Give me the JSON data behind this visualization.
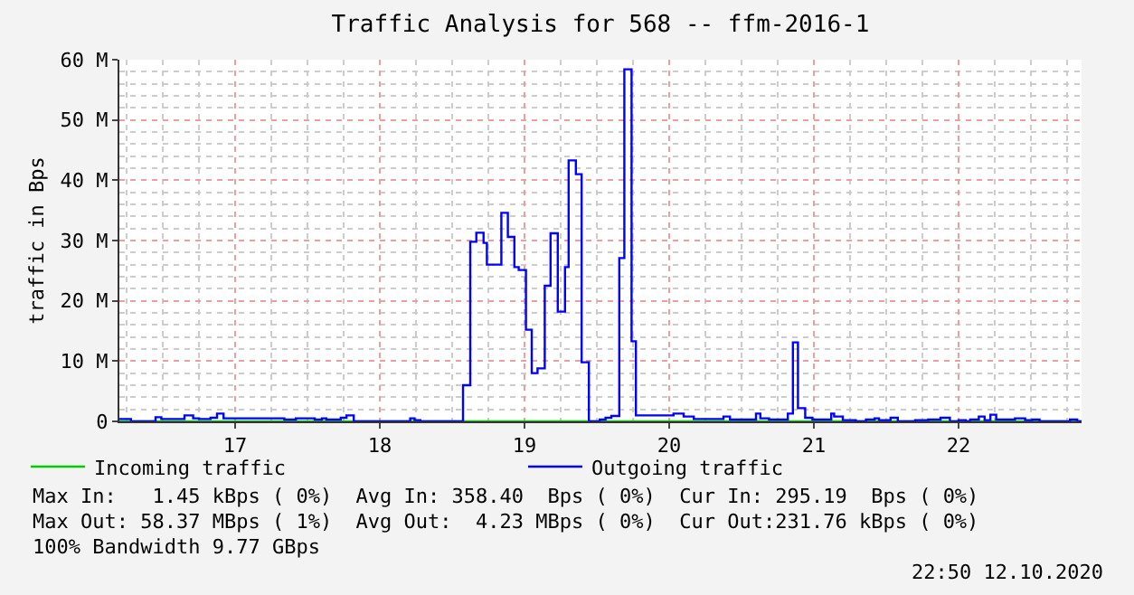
{
  "chart_data": {
    "type": "step",
    "title": "Traffic Analysis for 568 -- ffm-2016-1",
    "ylabel": "traffic in Bps",
    "xlim": [
      16.2,
      22.85
    ],
    "xticks": [
      17,
      18,
      19,
      20,
      21,
      22
    ],
    "ylim": [
      0,
      60
    ],
    "yticks": [
      0,
      {
        "value": 10,
        "label": "10 M"
      },
      {
        "value": 20,
        "label": "20 M"
      },
      {
        "value": 30,
        "label": "30 M"
      },
      {
        "value": 40,
        "label": "40 M"
      },
      {
        "value": 50,
        "label": "50 M"
      },
      {
        "value": 60,
        "label": "60 M"
      }
    ],
    "grid": true,
    "legend": "bottom",
    "marker": "none",
    "line_style": "solid",
    "series": [
      {
        "name": "Incoming traffic",
        "color": "#00cc00",
        "x": [
          16.2,
          22.85
        ],
        "values": [
          0,
          0
        ]
      },
      {
        "name": "Outgoing traffic",
        "color": "#0000ff",
        "x": [
          16.2,
          16.21,
          16.28,
          16.45,
          16.49,
          16.65,
          16.71,
          16.75,
          16.83,
          16.875,
          16.92,
          17.34,
          17.42,
          17.55,
          17.6,
          17.63,
          17.73,
          17.77,
          17.82,
          18.21,
          18.24,
          18.28,
          18.575,
          18.625,
          18.667,
          18.717,
          18.74,
          18.84,
          18.885,
          18.93,
          18.96,
          19.01,
          19.05,
          19.09,
          19.14,
          19.18,
          19.23,
          19.28,
          19.305,
          19.355,
          19.395,
          19.445,
          19.52,
          19.56,
          19.6,
          19.655,
          19.69,
          19.74,
          19.77,
          20.03,
          20.1,
          20.17,
          20.375,
          20.42,
          20.5,
          20.6,
          20.63,
          20.69,
          20.82,
          20.855,
          20.89,
          20.94,
          20.99,
          21.12,
          21.14,
          21.2,
          21.29,
          21.36,
          21.42,
          21.45,
          21.53,
          21.58,
          21.7,
          21.79,
          21.875,
          21.94,
          22.0,
          22.05,
          22.08,
          22.14,
          22.18,
          22.22,
          22.26,
          22.39,
          22.46,
          22.51,
          22.56,
          22.77,
          22.82,
          22.85
        ],
        "values": [
          0.4,
          0.4,
          0,
          0.7,
          0.4,
          1.0,
          0.5,
          0.4,
          0.6,
          1.3,
          0.5,
          0.3,
          0.5,
          0.3,
          0.5,
          0.3,
          0.6,
          1.0,
          0,
          0.5,
          0.2,
          0,
          6.0,
          29.8,
          31.3,
          29.6,
          26.0,
          34.6,
          30.6,
          25.6,
          25.1,
          15.2,
          8.0,
          8.8,
          22.5,
          31.2,
          18.2,
          25.6,
          43.3,
          41.0,
          9.8,
          0,
          0.3,
          0.6,
          0.9,
          27.1,
          58.4,
          13.3,
          1.0,
          1.3,
          0.8,
          0.4,
          0.8,
          0.3,
          0.3,
          1.3,
          0.5,
          0.3,
          1.3,
          13.1,
          2.2,
          0.6,
          0.3,
          1.3,
          0.8,
          0.2,
          0,
          0.3,
          0.5,
          0.2,
          0.6,
          0,
          0.2,
          0.3,
          0.6,
          0,
          0.2,
          0,
          0.3,
          0.8,
          0.2,
          1.1,
          0.3,
          0.5,
          0.2,
          0.3,
          0,
          0.3,
          0,
          0
        ]
      }
    ],
    "annotations": [
      "Max In:   1.45 kBps ( 0%)  Avg In: 358.40  Bps ( 0%)  Cur In: 295.19  Bps ( 0%)",
      "Max Out: 58.37 MBps ( 1%)  Avg Out:  4.23 MBps ( 0%)  Cur Out:231.76 kBps ( 0%)",
      "100% Bandwidth 9.77 GBps",
      "22:50 12.10.2020"
    ]
  }
}
